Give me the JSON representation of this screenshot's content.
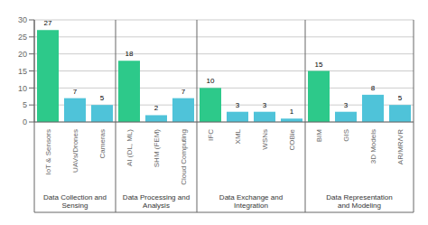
{
  "chart_data": {
    "type": "bar",
    "categories": [
      "IoT & Sensors",
      "UAVs/Drones",
      "Cameras",
      "AI (DL, ML)",
      "SHM (FEM)",
      "Cloud Computing",
      "IFC",
      "XML",
      "WSNs",
      "COBie",
      "BIM",
      "GIS",
      "3D Models",
      "AR/MR/VR"
    ],
    "values": [
      27,
      7,
      5,
      18,
      2,
      7,
      10,
      3,
      3,
      1,
      15,
      3,
      8,
      5
    ],
    "colors": [
      "#2dc98a",
      "#4fc3d9",
      "#4fc3d9",
      "#2dc98a",
      "#4fc3d9",
      "#4fc3d9",
      "#2dc98a",
      "#4fc3d9",
      "#4fc3d9",
      "#4fc3d9",
      "#2dc98a",
      "#4fc3d9",
      "#4fc3d9",
      "#4fc3d9"
    ],
    "groups": [
      {
        "label": "Data Collection and\nSensing",
        "categories": [
          "IoT & Sensors",
          "UAVs/Drones",
          "Cameras"
        ]
      },
      {
        "label": "Data Processing and\nAnalysis",
        "categories": [
          "AI (DL, ML)",
          "SHM (FEM)",
          "Cloud Computing"
        ]
      },
      {
        "label": "Data Exchange and\nIntegration",
        "categories": [
          "IFC",
          "XML",
          "WSNs",
          "COBie"
        ]
      },
      {
        "label": "Data Representation\nand Modeling",
        "categories": [
          "BIM",
          "GIS",
          "3D Models",
          "AR/MR/VR"
        ]
      }
    ],
    "ylim": [
      0,
      30
    ],
    "yticks": [
      0,
      5,
      10,
      15,
      20,
      25,
      30
    ],
    "grid": true,
    "data_labels": true
  }
}
